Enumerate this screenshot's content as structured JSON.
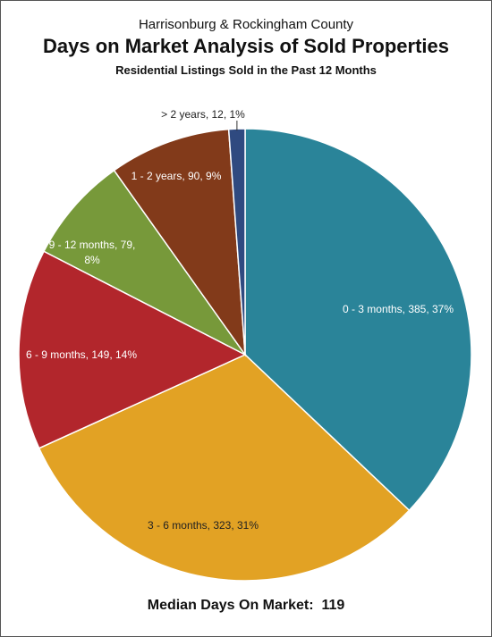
{
  "header": {
    "region": "Harrisonburg & Rockingham County",
    "title": "Days on Market Analysis of Sold Properties",
    "subtitle": "Residential Listings Sold in the Past 12 Months"
  },
  "footer": {
    "median_label": "Median Days On Market:",
    "median_value": "119"
  },
  "chart_data": {
    "type": "pie",
    "title": "Days on Market Analysis of Sold Properties",
    "slices": [
      {
        "label": "0 - 3 months",
        "value": 385,
        "percent": 37,
        "color": "#2a8499",
        "text": "0 - 3 months, 385, 37%"
      },
      {
        "label": "3 - 6 months",
        "value": 323,
        "percent": 31,
        "color": "#e2a224",
        "text": "3 - 6 months, 323, 31%"
      },
      {
        "label": "6 - 9 months",
        "value": 149,
        "percent": 14,
        "color": "#b2262c",
        "text": "6 - 9 months, 149, 14%"
      },
      {
        "label": "9 - 12 months",
        "value": 79,
        "percent": 8,
        "color": "#77993a",
        "text": "9 - 12 months, 79, 8%"
      },
      {
        "label": "1 - 2 years",
        "value": 90,
        "percent": 9,
        "color": "#823a1a",
        "text": "1 - 2 years, 90, 9%"
      },
      {
        "label": "> 2 years",
        "value": 12,
        "percent": 1,
        "color": "#2f4a80",
        "text": "> 2 years, 12, 1%"
      }
    ]
  }
}
